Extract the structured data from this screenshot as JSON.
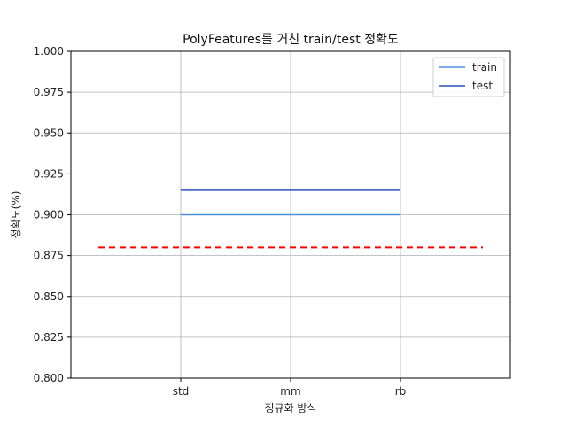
{
  "chart_data": {
    "type": "line",
    "title": "PolyFeatures를 거친 train/test 정확도",
    "xlabel": "정규화 방식",
    "ylabel": "정확도(%)",
    "categories": [
      "std",
      "mm",
      "rb"
    ],
    "ylim": [
      0.8,
      1.0
    ],
    "yticks": [
      "0.800",
      "0.825",
      "0.850",
      "0.875",
      "0.900",
      "0.925",
      "0.950",
      "0.975",
      "1.000"
    ],
    "grid": true,
    "legend_position": "top-right",
    "series": [
      {
        "name": "train",
        "values": [
          0.9,
          0.9,
          0.9
        ],
        "color": "#4a90e2"
      },
      {
        "name": "test",
        "values": [
          0.915,
          0.915,
          0.915
        ],
        "color": "#2a52be"
      }
    ],
    "reference_line": {
      "value": 0.88,
      "color": "#ff0000",
      "style": "dashed"
    }
  }
}
